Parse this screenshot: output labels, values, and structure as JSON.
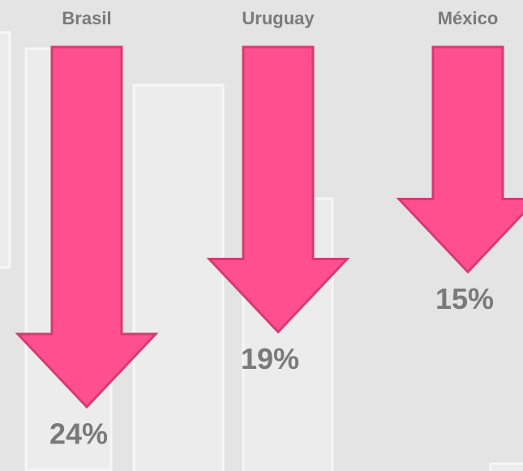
{
  "chart_data": {
    "type": "arrow",
    "categories": [
      "Brasil",
      "Uruguay",
      "México"
    ],
    "values": [
      24,
      19,
      15
    ],
    "value_labels": [
      "24%",
      "19%",
      "15%"
    ],
    "color": "#ff4f8e"
  }
}
